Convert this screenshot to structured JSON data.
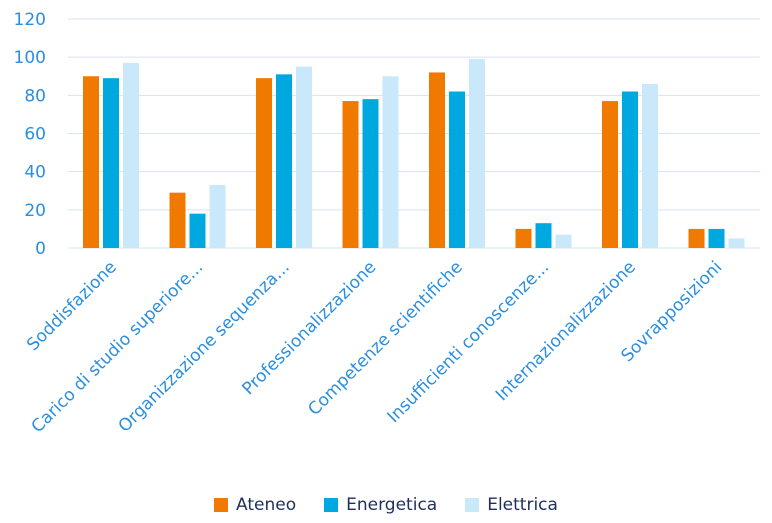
{
  "chart_data": {
    "type": "bar",
    "title": "",
    "xlabel": "",
    "ylabel": "",
    "ylim": [
      0,
      120
    ],
    "yticks": [
      "0",
      "20",
      "40",
      "60",
      "80",
      "100",
      "120"
    ],
    "grid": true,
    "legend_position": "bottom",
    "categories": [
      "Soddisfazione",
      "Carico di studio superiore...",
      "Organizzazione sequenza...",
      "Professionalizzazione",
      "Competenze scientifiche",
      "Insufficienti conoscenze...",
      "Internazionalizzazione",
      "Sovrapposizioni"
    ],
    "series": [
      {
        "name": "Ateneo",
        "color": "#f07a00",
        "values": [
          90,
          29,
          89,
          77,
          92,
          10,
          77,
          10
        ]
      },
      {
        "name": "Energetica",
        "color": "#00a8e0",
        "values": [
          89,
          18,
          91,
          78,
          82,
          13,
          82,
          10
        ]
      },
      {
        "name": "Elettrica",
        "color": "#c9e8fa",
        "values": [
          97,
          33,
          95,
          90,
          99,
          7,
          86,
          5
        ]
      }
    ],
    "colors": {
      "axis_text": "#2a8fe0",
      "grid": "#d6e3f0",
      "legend_text": "#1f2f5a"
    }
  }
}
